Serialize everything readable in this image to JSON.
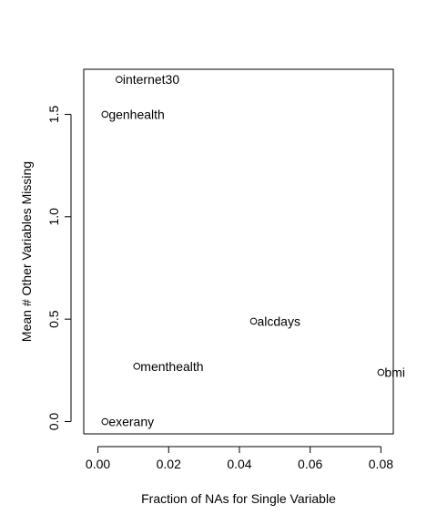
{
  "chart_data": {
    "type": "scatter",
    "title": "",
    "xlabel": "Fraction of NAs for Single Variable",
    "ylabel": "Mean # Other Variables Missing",
    "xlim": [
      -0.004,
      0.0835
    ],
    "ylim": [
      -0.06,
      1.72
    ],
    "xticks": [
      0.0,
      0.02,
      0.04,
      0.06,
      0.08
    ],
    "xtick_labels": [
      "0.00",
      "0.02",
      "0.04",
      "0.06",
      "0.08"
    ],
    "yticks": [
      0.0,
      0.5,
      1.0,
      1.5
    ],
    "ytick_labels": [
      "0.0",
      "0.5",
      "1.0",
      "1.5"
    ],
    "grid": false,
    "points": [
      {
        "label": "internet30",
        "x": 0.006,
        "y": 1.67
      },
      {
        "label": "genhealth",
        "x": 0.002,
        "y": 1.5
      },
      {
        "label": "alcdays",
        "x": 0.044,
        "y": 0.49
      },
      {
        "label": "menthealth",
        "x": 0.011,
        "y": 0.27
      },
      {
        "label": "bmi",
        "x": 0.08,
        "y": 0.24
      },
      {
        "label": "exerany",
        "x": 0.002,
        "y": 0.0
      }
    ],
    "colors": {
      "points": "#000000",
      "axes": "#000000"
    }
  }
}
